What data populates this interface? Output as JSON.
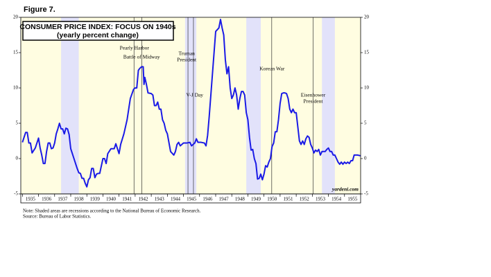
{
  "chart_data": {
    "type": "line",
    "figure_label": "Figure 7.",
    "title": "CONSUMER PRICE INDEX: FOCUS ON 1940s",
    "subtitle": "(yearly percent change)",
    "source_mark": "yardeni.com",
    "notes": [
      "Note: Shaded areas are recessions according to the National Bureau of Economic Research.",
      "Source: Bureau of Labor Statistics."
    ],
    "color": "#1a1ae6",
    "background": "#fffde1",
    "recession_color": "#e2e2fa",
    "xlim": [
      1934.9,
      1956.0
    ],
    "years": [
      1935,
      1936,
      1937,
      1938,
      1939,
      1940,
      1941,
      1942,
      1943,
      1944,
      1945,
      1946,
      1947,
      1948,
      1949,
      1950,
      1951,
      1952,
      1953,
      1954,
      1955
    ],
    "ylim": [
      -5,
      20
    ],
    "yticks": [
      -5,
      0,
      5,
      10,
      15,
      20
    ],
    "recessions": [
      [
        1937.4,
        1938.5
      ],
      [
        1945.1,
        1945.8
      ],
      [
        1948.9,
        1949.8
      ],
      [
        1953.6,
        1954.4
      ]
    ],
    "events": [
      {
        "lines": [
          "Pearly Harbor"
        ],
        "x": 1941.93,
        "label_x": 1941.95
      },
      {
        "lines": [
          "Battle of Midway"
        ],
        "x": 1942.42,
        "label_x": 1942.4
      },
      {
        "lines": [
          "Truman",
          "President"
        ],
        "x": 1945.28,
        "label_x": 1945.2
      },
      {
        "lines": [
          "V-J Day"
        ],
        "x": 1945.62,
        "label_x": 1945.7
      },
      {
        "lines": [
          "Korean War"
        ],
        "x": 1950.48,
        "label_x": 1950.5
      },
      {
        "lines": [
          "Eisenhower",
          "President"
        ],
        "x": 1953.05,
        "label_x": 1953.05
      }
    ],
    "x": [
      1935.0,
      1935.1,
      1935.2,
      1935.3,
      1935.4,
      1935.5,
      1935.6,
      1935.8,
      1936.0,
      1936.1,
      1936.2,
      1936.3,
      1936.4,
      1936.5,
      1936.6,
      1936.7,
      1936.8,
      1936.9,
      1937.0,
      1937.1,
      1937.2,
      1937.3,
      1937.4,
      1937.5,
      1937.6,
      1937.7,
      1937.8,
      1937.9,
      1938.0,
      1938.1,
      1938.2,
      1938.3,
      1938.4,
      1938.5,
      1938.6,
      1938.7,
      1938.8,
      1938.9,
      1939.0,
      1939.1,
      1939.2,
      1939.3,
      1939.4,
      1939.5,
      1939.6,
      1939.7,
      1939.8,
      1940.0,
      1940.1,
      1940.2,
      1940.3,
      1940.5,
      1940.6,
      1940.7,
      1940.8,
      1940.9,
      1941.0,
      1941.1,
      1941.3,
      1941.5,
      1941.7,
      1941.9,
      1942.0,
      1942.1,
      1942.2,
      1942.3,
      1942.4,
      1942.5,
      1942.55,
      1942.6,
      1942.7,
      1942.8,
      1943.0,
      1943.1,
      1943.2,
      1943.3,
      1943.4,
      1943.5,
      1943.6,
      1943.7,
      1943.8,
      1943.9,
      1944.0,
      1944.2,
      1944.4,
      1944.5,
      1944.6,
      1944.7,
      1944.8,
      1945.0,
      1945.2,
      1945.4,
      1945.5,
      1945.7,
      1945.8,
      1945.9,
      1946.1,
      1946.3,
      1946.4,
      1946.5,
      1946.6,
      1946.7,
      1946.8,
      1946.9,
      1947.0,
      1947.2,
      1947.3,
      1947.4,
      1947.5,
      1947.6,
      1947.7,
      1947.8,
      1947.9,
      1948.0,
      1948.1,
      1948.2,
      1948.3,
      1948.4,
      1948.5,
      1948.6,
      1948.7,
      1948.8,
      1948.9,
      1949.0,
      1949.1,
      1949.2,
      1949.3,
      1949.4,
      1949.5,
      1949.6,
      1949.7,
      1949.8,
      1949.9,
      1950.0,
      1950.1,
      1950.2,
      1950.3,
      1950.4,
      1950.5,
      1950.6,
      1950.7,
      1950.8,
      1950.9,
      1951.0,
      1951.1,
      1951.2,
      1951.3,
      1951.4,
      1951.5,
      1951.6,
      1951.7,
      1951.8,
      1951.9,
      1952.0,
      1952.1,
      1952.2,
      1952.3,
      1952.4,
      1952.5,
      1952.6,
      1952.7,
      1952.8,
      1952.9,
      1953.0,
      1953.1,
      1953.2,
      1953.3,
      1953.4,
      1953.5,
      1953.6,
      1953.7,
      1953.8,
      1953.9,
      1954.0,
      1954.1,
      1954.2,
      1954.3,
      1954.4,
      1954.5,
      1954.6,
      1954.7,
      1954.8,
      1954.9,
      1955.0,
      1955.1,
      1955.2,
      1955.3,
      1955.4,
      1955.5,
      1955.6,
      1955.8,
      1956.0
    ],
    "values": [
      2.3,
      3.0,
      3.7,
      3.7,
      2.2,
      2.2,
      0.8,
      1.5,
      2.9,
      1.5,
      0.5,
      -0.7,
      -0.7,
      1.0,
      2.2,
      2.2,
      1.4,
      1.5,
      2.2,
      3.5,
      4.2,
      5.0,
      4.2,
      4.2,
      3.5,
      4.3,
      4.2,
      3.4,
      1.4,
      0.7,
      0.0,
      -0.7,
      -1.4,
      -2.0,
      -2.1,
      -2.8,
      -2.8,
      -3.5,
      -4.0,
      -3.0,
      -2.7,
      -1.4,
      -1.4,
      -2.7,
      -2.2,
      -2.1,
      -2.1,
      0.0,
      0.0,
      -0.7,
      0.7,
      1.4,
      1.4,
      1.4,
      2.1,
      1.4,
      0.7,
      2.0,
      3.5,
      5.5,
      8.5,
      9.8,
      10.0,
      10.0,
      12.5,
      12.8,
      13.0,
      13.0,
      10.5,
      11.5,
      10.5,
      9.3,
      9.2,
      9.0,
      7.5,
      7.5,
      8.0,
      7.0,
      7.0,
      5.5,
      5.0,
      4.0,
      3.5,
      1.0,
      0.5,
      1.0,
      2.0,
      2.3,
      1.8,
      2.2,
      2.2,
      2.3,
      1.8,
      2.2,
      2.8,
      2.3,
      2.3,
      2.2,
      1.8,
      3.3,
      6.0,
      9.0,
      12.0,
      15.0,
      18.0,
      18.5,
      19.7,
      18.5,
      17.5,
      14.0,
      12.0,
      13.0,
      10.0,
      8.5,
      9.0,
      10.0,
      9.0,
      7.0,
      8.5,
      9.5,
      9.5,
      9.0,
      6.5,
      5.5,
      3.0,
      1.2,
      1.3,
      0.0,
      -0.7,
      -2.9,
      -2.8,
      -2.2,
      -3.0,
      -2.2,
      -1.0,
      -1.2,
      -0.5,
      0.0,
      1.7,
      2.2,
      3.8,
      3.8,
      5.5,
      7.8,
      9.2,
      9.3,
      9.3,
      9.2,
      8.5,
      7.0,
      6.5,
      7.0,
      6.5,
      6.5,
      4.5,
      2.5,
      2.0,
      2.5,
      2.0,
      2.8,
      3.2,
      3.0,
      2.0,
      1.5,
      0.8,
      1.2,
      1.0,
      1.3,
      0.5,
      1.0,
      1.0,
      1.0,
      1.3,
      1.5,
      1.0,
      1.0,
      0.5,
      0.5,
      0.0,
      -0.5,
      -0.8,
      -0.5,
      -0.8,
      -0.5,
      -0.7,
      -0.5,
      -0.7,
      -0.3,
      -0.3,
      0.5,
      0.5,
      0.4
    ]
  }
}
